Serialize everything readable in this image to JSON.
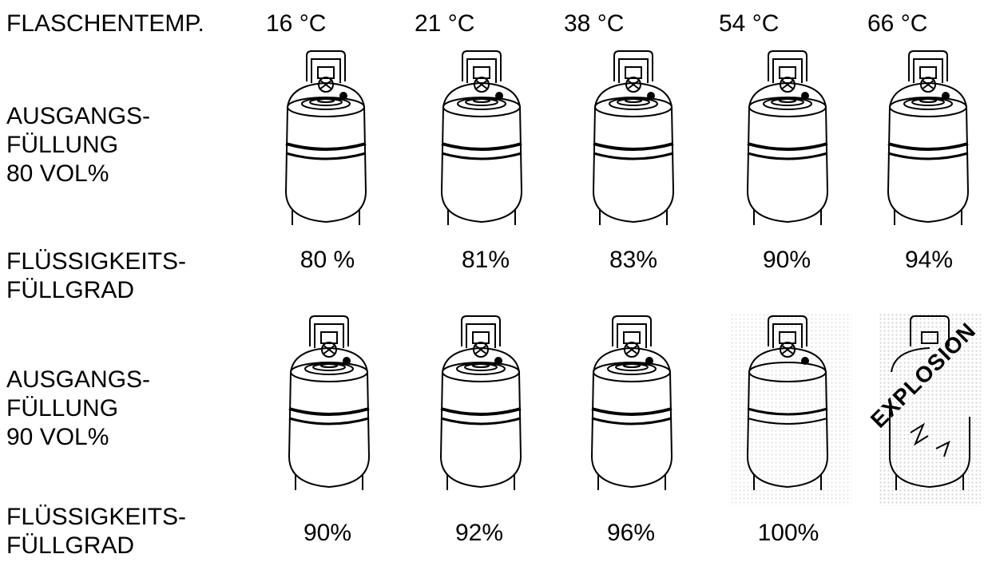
{
  "header": {
    "label": "FLASCHENTEMP."
  },
  "temperatures": [
    "16 °C",
    "21 °C",
    "38 °C",
    "54 °C",
    "66 °C"
  ],
  "row1": {
    "label_lines": [
      "AUSGANGS-",
      "FÜLLUNG",
      "80 VOL%"
    ],
    "level_label_lines": [
      "FLÜSSIGKEITS-",
      "FÜLLGRAD"
    ],
    "levels": [
      "80 %",
      "81%",
      "83%",
      "90%",
      "94%"
    ]
  },
  "row2": {
    "label_lines": [
      "AUSGANGS-",
      "FÜLLUNG",
      "90 VOL%"
    ],
    "level_label_lines": [
      "FLÜSSIGKEITS-",
      "FÜLLGRAD"
    ],
    "levels": [
      "90%",
      "92%",
      "96%",
      "100%"
    ],
    "explosion_text": "EXPLOSION"
  },
  "icons": {
    "cylinder": "gas-cylinder-icon"
  }
}
